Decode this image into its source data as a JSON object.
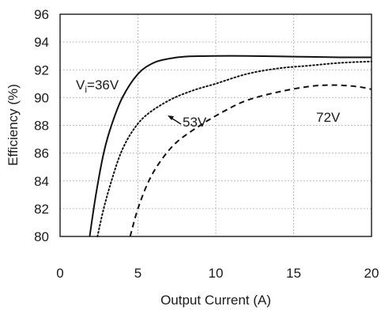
{
  "chart_data": {
    "type": "line",
    "xlabel": "Output Current (A)",
    "ylabel": "Efficiency (%)",
    "xlim": [
      0,
      20
    ],
    "ylim": [
      80,
      96
    ],
    "xticks": [
      "0",
      "5",
      "10",
      "15",
      "20"
    ],
    "yticks": [
      "80",
      "82",
      "84",
      "86",
      "88",
      "90",
      "92",
      "94",
      "96"
    ],
    "grid": true,
    "series": [
      {
        "name": "Vi=36V",
        "label_main": "V",
        "label_sub": "i",
        "label_rest": "=36V",
        "style": "solid",
        "points": [
          [
            1.9,
            80
          ],
          [
            2.3,
            83
          ],
          [
            2.8,
            86
          ],
          [
            3.3,
            88
          ],
          [
            4.0,
            90
          ],
          [
            5.0,
            91.7
          ],
          [
            6.0,
            92.5
          ],
          [
            7.0,
            92.8
          ],
          [
            8.0,
            92.95
          ],
          [
            10.0,
            93.0
          ],
          [
            12.0,
            93.0
          ],
          [
            15.0,
            92.95
          ],
          [
            18.0,
            92.9
          ],
          [
            20.0,
            92.9
          ]
        ]
      },
      {
        "name": "53V",
        "style": "dotted",
        "points": [
          [
            2.4,
            80
          ],
          [
            2.8,
            82
          ],
          [
            3.3,
            84
          ],
          [
            3.9,
            86
          ],
          [
            4.6,
            87.5
          ],
          [
            5.5,
            88.7
          ],
          [
            7.0,
            89.8
          ],
          [
            8.5,
            90.5
          ],
          [
            10.0,
            91.0
          ],
          [
            12.0,
            91.7
          ],
          [
            14.0,
            92.1
          ],
          [
            16.0,
            92.3
          ],
          [
            18.0,
            92.5
          ],
          [
            20.0,
            92.6
          ]
        ]
      },
      {
        "name": "72V",
        "style": "dashed",
        "points": [
          [
            4.5,
            80
          ],
          [
            5.0,
            82
          ],
          [
            5.7,
            84
          ],
          [
            6.5,
            85.5
          ],
          [
            7.5,
            86.8
          ],
          [
            9.0,
            88.0
          ],
          [
            10.5,
            89.0
          ],
          [
            12.0,
            89.8
          ],
          [
            14.0,
            90.4
          ],
          [
            16.0,
            90.8
          ],
          [
            17.5,
            90.9
          ],
          [
            19.0,
            90.8
          ],
          [
            20.0,
            90.6
          ]
        ]
      }
    ],
    "annotations": {
      "label_53_text": "53V",
      "label_72_text": "72V"
    }
  }
}
